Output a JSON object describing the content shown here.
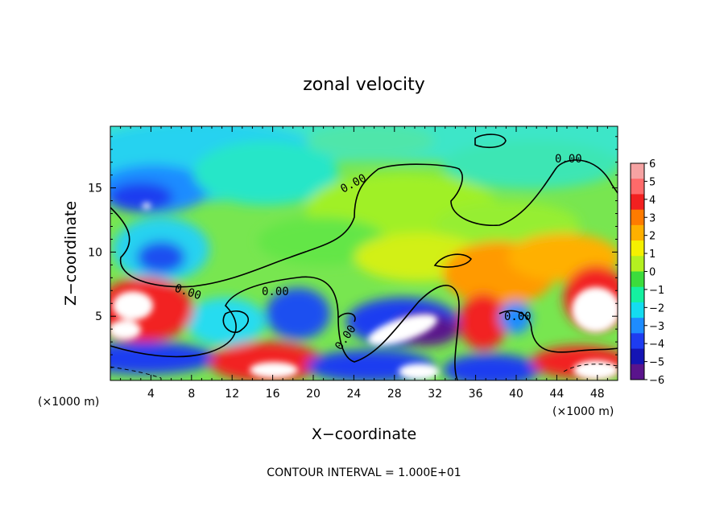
{
  "chart_data": {
    "type": "heatmap",
    "title": "zonal velocity",
    "xlabel": "X−coordinate",
    "ylabel": "Z−coordinate",
    "x_unit": "(×1000 m)",
    "z_unit": "(×1000 m)",
    "xlim": [
      0,
      50
    ],
    "ylim": [
      0,
      19.8
    ],
    "x_ticks": [
      4,
      8,
      12,
      16,
      20,
      24,
      28,
      32,
      36,
      40,
      44,
      48
    ],
    "y_ticks": [
      5,
      10,
      15
    ],
    "colorbar": {
      "levels": [
        6,
        5,
        4,
        3,
        2,
        1,
        0,
        -1,
        -2,
        -3,
        -4,
        -5,
        -6
      ],
      "labels": [
        "6",
        "5",
        "4",
        "3",
        "2",
        "1",
        "0",
        "−1",
        "−2",
        "−3",
        "−4",
        "−5",
        "−6"
      ],
      "colors": [
        "#f6a3a3",
        "#ff6a6a",
        "#f22020",
        "#ff7b00",
        "#ffb000",
        "#f5f000",
        "#b4f020",
        "#3cdc3c",
        "#14f0a0",
        "#14dcf0",
        "#1e8cff",
        "#1e3cf0",
        "#1414b4",
        "#5a148c"
      ]
    },
    "contour_label": "0.00",
    "footer": "CONTOUR INTERVAL = 1.000E+01"
  }
}
